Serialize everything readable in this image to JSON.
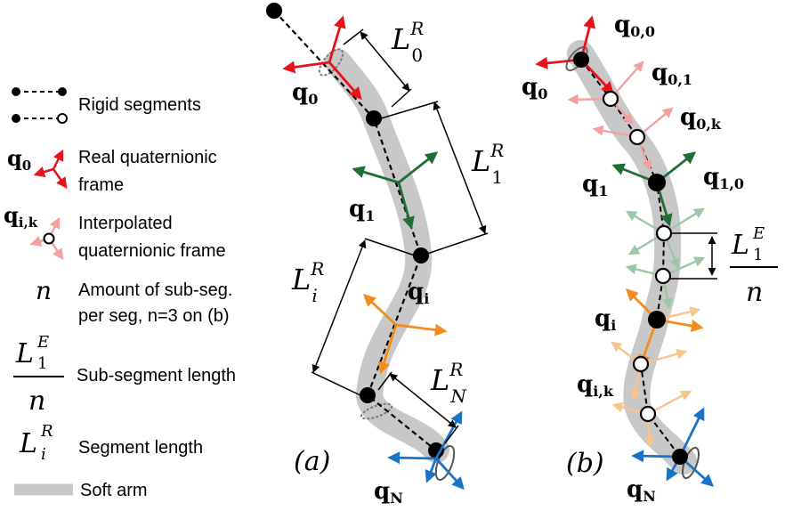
{
  "legend": {
    "rigid_segments": "Rigid segments",
    "q0_symbol": "q",
    "q0_sub": "0",
    "real_frame_line1": "Real quaternionic",
    "real_frame_line2": "frame",
    "qik_symbol": "q",
    "qik_sub": "i,k",
    "interp_frame_line1": "Interpolated",
    "interp_frame_line2": "quaternionic frame",
    "n_symbol": "n",
    "amount_line1": "Amount of sub-seg.",
    "amount_line2": "per seg, n=3 on (b)",
    "sub_len_num": "L",
    "sub_len_sup": "E",
    "sub_len_sub": "1",
    "sub_len_den": "n",
    "sub_len_text": "Sub-segment length",
    "seg_len_symbol": "L",
    "seg_len_sup": "R",
    "seg_len_sub": "i",
    "seg_len_text": "Segment length",
    "soft_arm_text": "Soft arm"
  },
  "panel_a": {
    "label": "(a)",
    "L0": {
      "main": "L",
      "sup": "R",
      "sub": "0"
    },
    "L1": {
      "main": "L",
      "sup": "R",
      "sub": "1"
    },
    "Li": {
      "main": "L",
      "sup": "R",
      "sub": "i"
    },
    "LN": {
      "main": "L",
      "sup": "R",
      "sub": "N"
    },
    "q0": {
      "main": "q",
      "sub": "0"
    },
    "q1": {
      "main": "q",
      "sub": "1"
    },
    "qi": {
      "main": "q",
      "sub": "i"
    },
    "qN": {
      "main": "q",
      "sub": "N"
    }
  },
  "panel_b": {
    "label": "(b)",
    "q00": {
      "main": "q",
      "sub": "0,0"
    },
    "q01": {
      "main": "q",
      "sub": "0,1"
    },
    "q0k": {
      "main": "q",
      "sub": "0,k"
    },
    "q0": {
      "main": "q",
      "sub": "0"
    },
    "q1": {
      "main": "q",
      "sub": "1"
    },
    "q10": {
      "main": "q",
      "sub": "1,0"
    },
    "qi": {
      "main": "q",
      "sub": "i"
    },
    "qik": {
      "main": "q",
      "sub": "i,k"
    },
    "qN": {
      "main": "q",
      "sub": "N"
    },
    "L1E": {
      "main": "L",
      "sup": "E",
      "sub": "1",
      "den": "n"
    }
  },
  "colors": {
    "arm": "#c8c8c8",
    "red": "#e8121b",
    "pink": "#f2a0a0",
    "green": "#1f6e35",
    "light_green": "#9cc7a6",
    "orange": "#f28c1c",
    "light_orange": "#f7c48a",
    "blue": "#1a73c7",
    "black": "#000000"
  }
}
